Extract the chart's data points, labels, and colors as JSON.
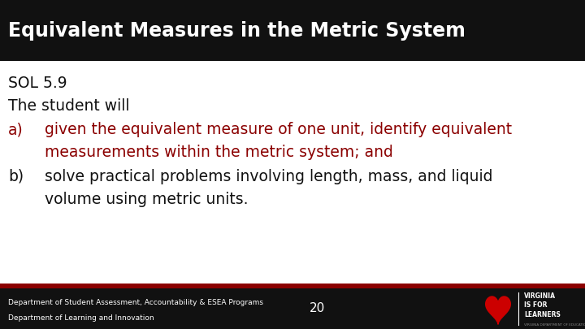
{
  "title": "Equivalent Measures in the Metric System",
  "title_bg": "#111111",
  "title_color": "#ffffff",
  "title_fontsize": 17,
  "body_bg": "#ffffff",
  "sol_line": "SOL 5.9",
  "student_line": "The student will",
  "item_a_label": "a)",
  "item_a_text1": "given the equivalent measure of one unit, identify equivalent",
  "item_a_text2": "measurements within the metric system; and",
  "item_b_label": "b)",
  "item_b_text1": "solve practical problems involving length, mass, and liquid",
  "item_b_text2": "volume using metric units.",
  "item_color": "#8b0000",
  "black_color": "#111111",
  "footer_bg": "#111111",
  "footer_text1": "Department of Student Assessment, Accountability & ESEA Programs",
  "footer_text2": "Department of Learning and Innovation",
  "footer_page": "20",
  "footer_color": "#ffffff",
  "footer_fontsize": 6.5,
  "red_bar_color": "#8b0000",
  "title_font": "DejaVu Sans",
  "body_font": "DejaVu Sans"
}
